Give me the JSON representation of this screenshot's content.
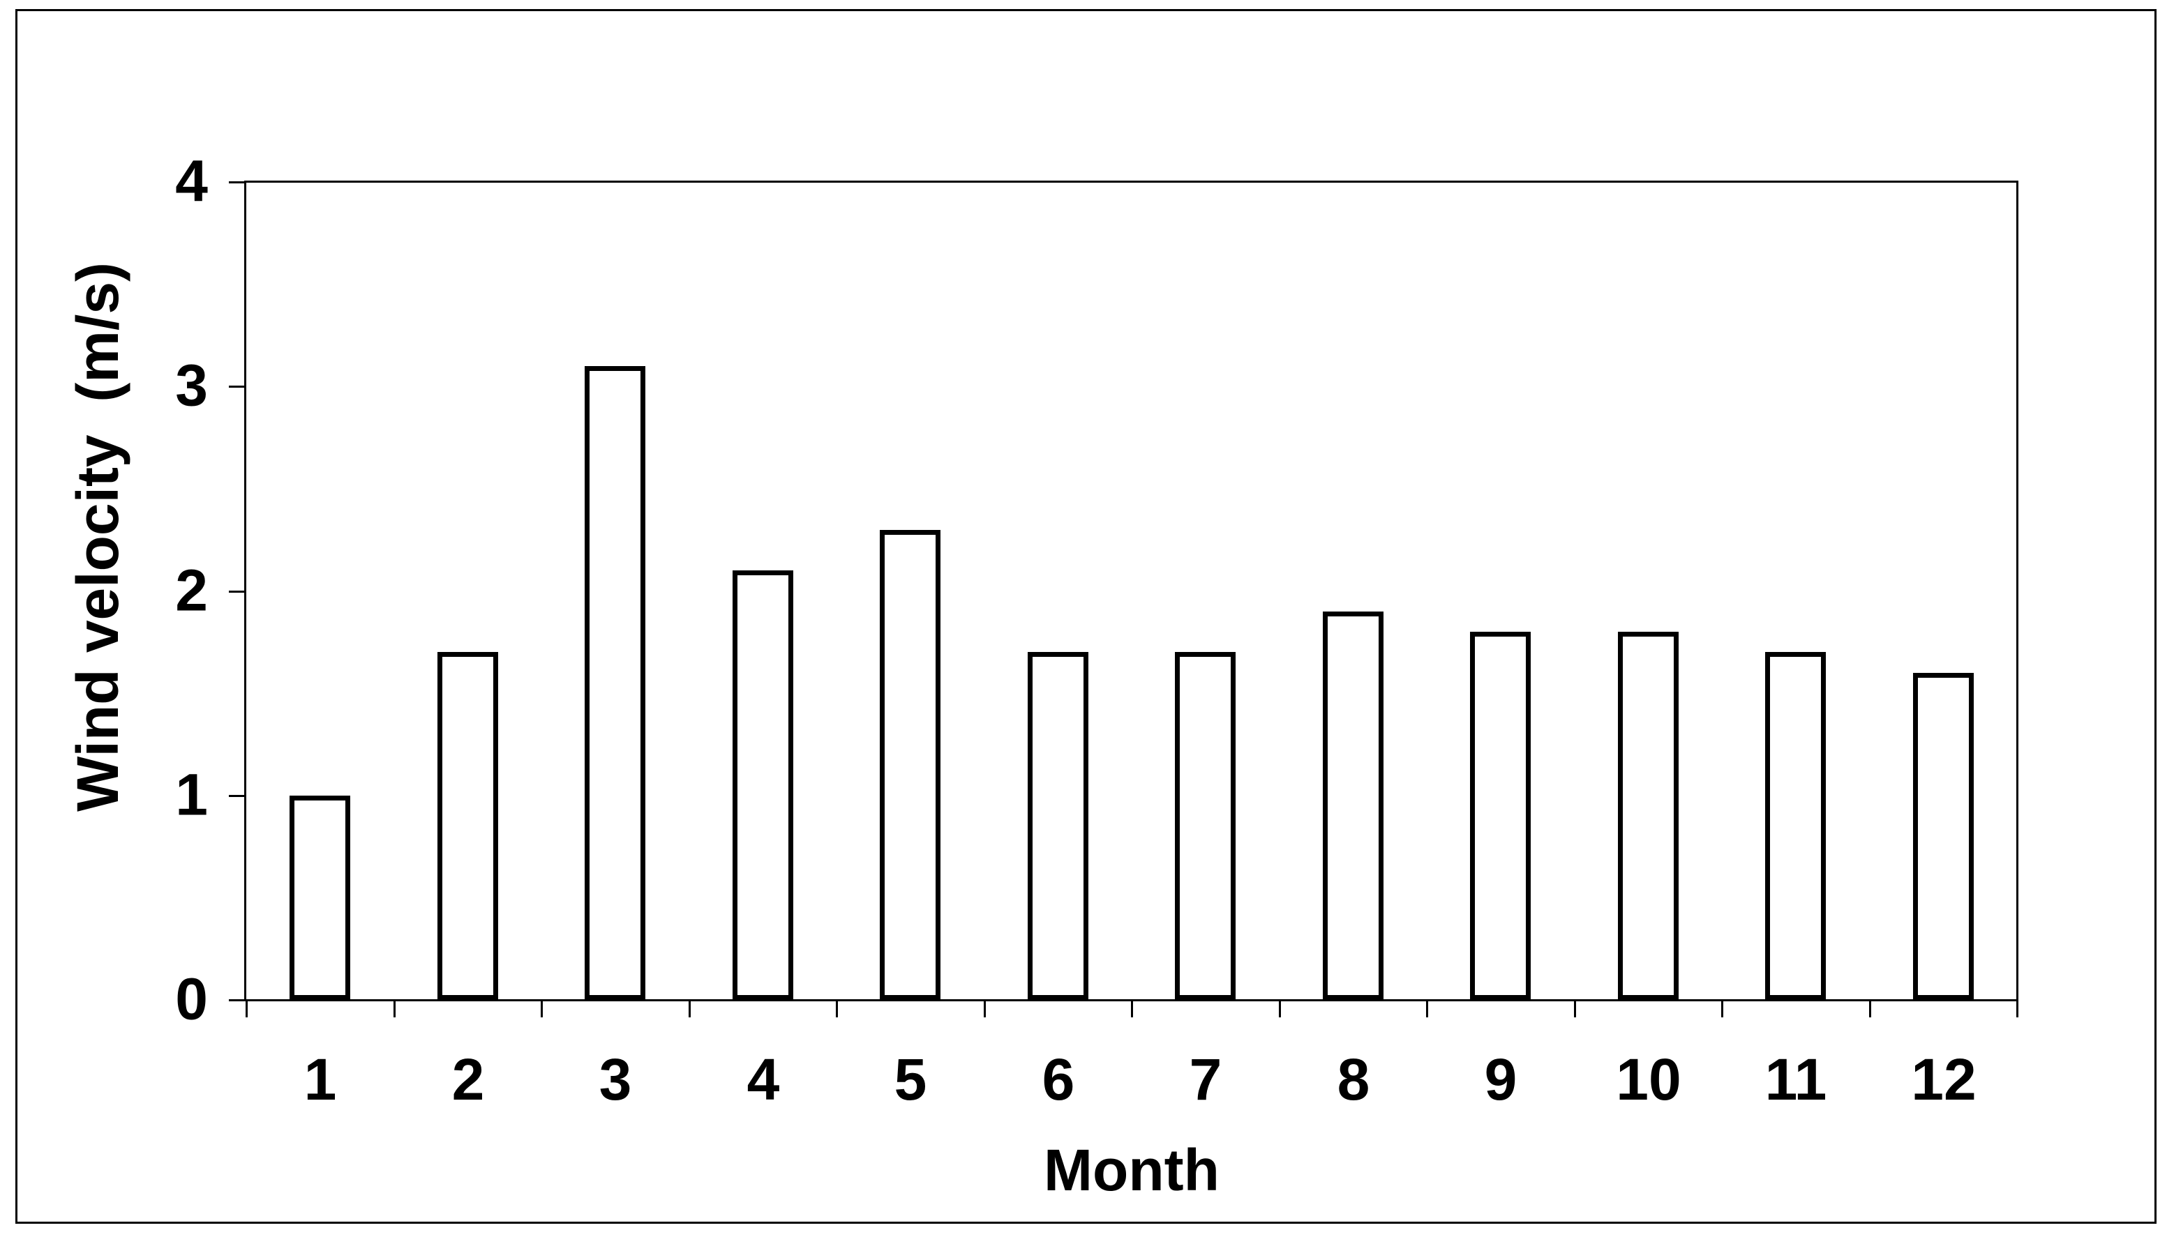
{
  "chart_data": {
    "type": "bar",
    "title": "",
    "categories": [
      "1",
      "2",
      "3",
      "4",
      "5",
      "6",
      "7",
      "8",
      "9",
      "10",
      "11",
      "12"
    ],
    "values": [
      1.0,
      1.7,
      3.1,
      2.1,
      2.3,
      1.7,
      1.7,
      1.9,
      1.8,
      1.8,
      1.7,
      1.6
    ],
    "xlabel": "Month",
    "ylabel": "Wind velocity  (m/s)",
    "ylim": [
      0,
      4
    ],
    "yticks": [
      0,
      1,
      2,
      3,
      4
    ],
    "grid": false,
    "legend": false,
    "colors": {
      "bar_fill": "#ffffff",
      "bar_outline": "#000000",
      "axis": "#000000",
      "text": "#000000",
      "background": "#ffffff"
    }
  }
}
